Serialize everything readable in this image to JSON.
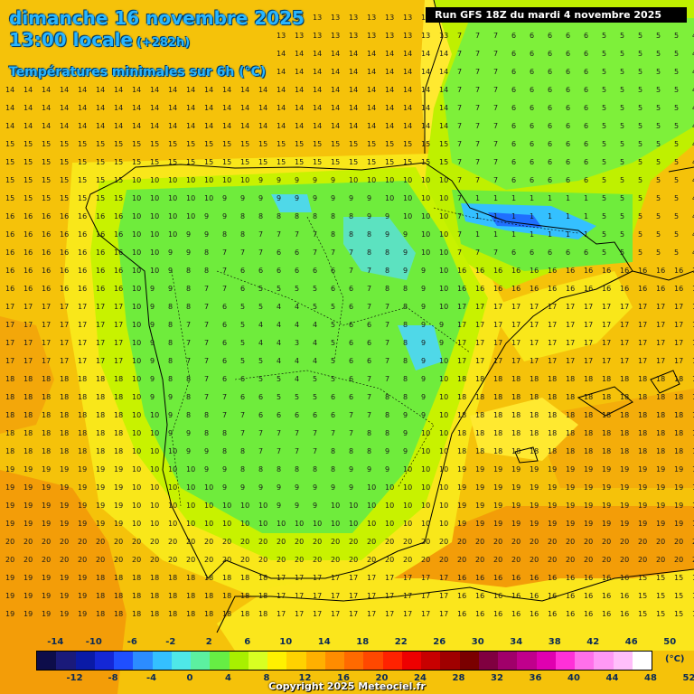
{
  "header": {
    "date": "dimanche 16 novembre 2025",
    "time": "13:00 locale",
    "offset": "(+282h)",
    "variable": "Températures minimales sur 6h (°C)",
    "run": "Run GFS 18Z du mardi 4 novembre 2025"
  },
  "legend": {
    "top_labels": [
      "-14",
      "-10",
      "-6",
      "-2",
      "2",
      "6",
      "10",
      "14",
      "18",
      "22",
      "26",
      "30",
      "34",
      "38",
      "42",
      "46",
      "50"
    ],
    "bottom_labels": [
      "-12",
      "-8",
      "-4",
      "0",
      "4",
      "8",
      "12",
      "16",
      "20",
      "24",
      "28",
      "32",
      "36",
      "40",
      "44",
      "48",
      "52"
    ],
    "unit": "(°C)",
    "colors": [
      "#0d0d4a",
      "#1a1a7a",
      "#0a1aa6",
      "#1427d6",
      "#1f4fff",
      "#2c8cff",
      "#34c0ff",
      "#4fe8e8",
      "#5cf0a0",
      "#66ee44",
      "#a8f000",
      "#d8ff22",
      "#fff100",
      "#ffd200",
      "#ffb000",
      "#ff8c00",
      "#ff6a00",
      "#ff4800",
      "#ff2200",
      "#ee0000",
      "#c80000",
      "#a00000",
      "#7a0000",
      "#800040",
      "#a0006a",
      "#c0008c",
      "#e000b0",
      "#ff30d8",
      "#ff70ea",
      "#ff99f5",
      "#ffbffa",
      "#ffffff"
    ]
  },
  "copyright": "Copyright 2025 Meteociel.fr"
}
